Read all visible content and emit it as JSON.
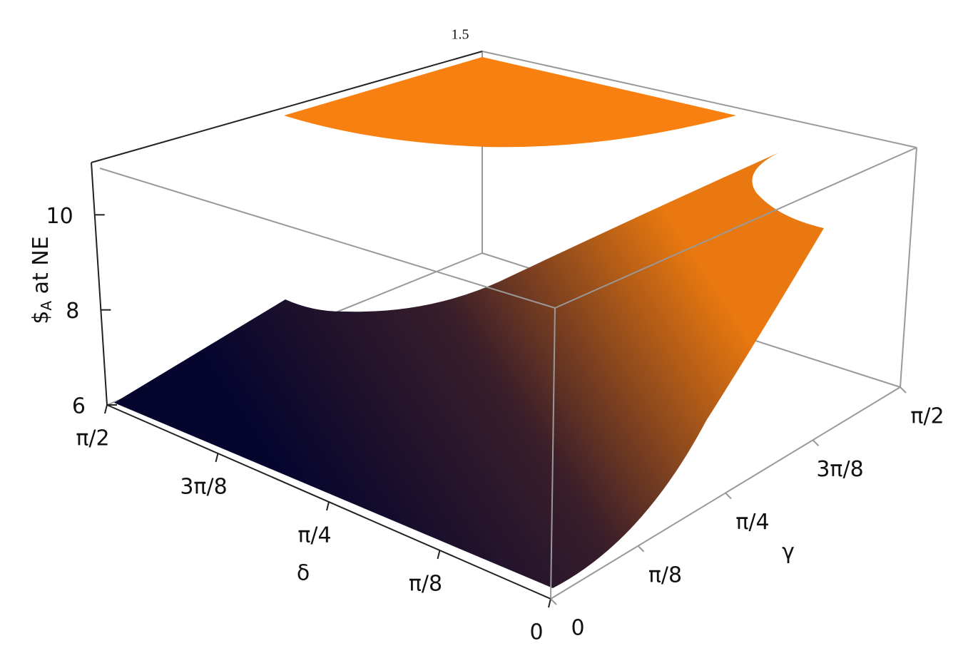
{
  "chart_data": {
    "type": "surface3d",
    "xlabel": "δ",
    "ylabel": "γ",
    "zlabel_main": "$",
    "zlabel_sub": "A",
    "zlabel_rest": " at NE",
    "xlim": [
      0,
      1.5708
    ],
    "xticks": [
      {
        "value": 0,
        "label": "0"
      },
      {
        "value": 0.3927,
        "label": "π/8"
      },
      {
        "value": 0.7854,
        "label": "π/4"
      },
      {
        "value": 1.1781,
        "label": "3π/8"
      },
      {
        "value": 1.5708,
        "label": "π/2"
      }
    ],
    "ylim": [
      0,
      1.5708
    ],
    "yticks": [
      {
        "value": 0,
        "label": "0"
      },
      {
        "value": 0.3927,
        "label": "π/8"
      },
      {
        "value": 0.7854,
        "label": "π/4"
      },
      {
        "value": 1.1781,
        "label": "3π/8"
      },
      {
        "value": 1.5708,
        "label": "π/2"
      }
    ],
    "zlim": [
      6,
      11.1
    ],
    "zticks": [
      6,
      8,
      10
    ],
    "top_tick": 1.5,
    "colors": [
      "#05052e",
      "#3a1e2a",
      "#e8780f"
    ]
  }
}
